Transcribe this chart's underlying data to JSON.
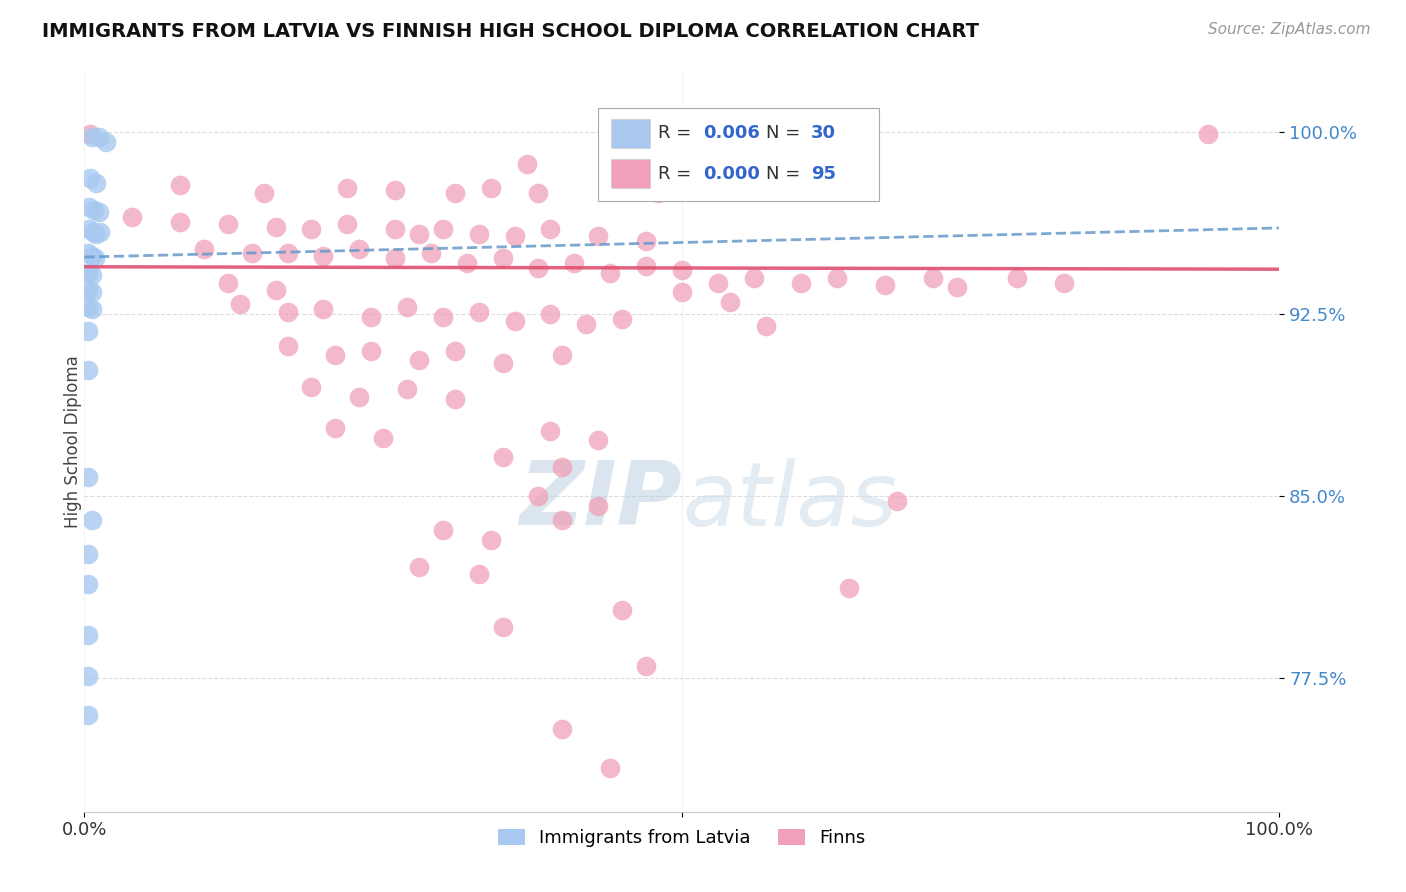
{
  "title": "IMMIGRANTS FROM LATVIA VS FINNISH HIGH SCHOOL DIPLOMA CORRELATION CHART",
  "source_text": "Source: ZipAtlas.com",
  "ylabel": "High School Diploma",
  "xlim": [
    0.0,
    1.0
  ],
  "ylim": [
    0.72,
    1.025
  ],
  "yticks": [
    0.775,
    0.85,
    0.925,
    1.0
  ],
  "ytick_labels": [
    "77.5%",
    "85.0%",
    "92.5%",
    "100.0%"
  ],
  "legend_r1": "0.006",
  "legend_n1": "30",
  "legend_r2": "0.000",
  "legend_n2": "95",
  "legend_label1": "Immigrants from Latvia",
  "legend_label2": "Finns",
  "color_blue": "#A8C8F0",
  "color_pink": "#F0A0B8",
  "trendline_blue": "#6699CC",
  "trendline_pink": "#E05070",
  "watermark_color": "#C8D8E8",
  "blue_trendline": [
    [
      0.0,
      0.9485
    ],
    [
      1.0,
      0.9605
    ]
  ],
  "pink_trendline": [
    [
      0.0,
      0.9445
    ],
    [
      1.0,
      0.9435
    ]
  ],
  "blue_scatter": [
    [
      0.006,
      0.998
    ],
    [
      0.012,
      0.998
    ],
    [
      0.018,
      0.996
    ],
    [
      0.005,
      0.981
    ],
    [
      0.01,
      0.979
    ],
    [
      0.004,
      0.969
    ],
    [
      0.008,
      0.968
    ],
    [
      0.012,
      0.967
    ],
    [
      0.004,
      0.96
    ],
    [
      0.007,
      0.959
    ],
    [
      0.01,
      0.958
    ],
    [
      0.013,
      0.959
    ],
    [
      0.003,
      0.95
    ],
    [
      0.006,
      0.949
    ],
    [
      0.009,
      0.948
    ],
    [
      0.003,
      0.942
    ],
    [
      0.006,
      0.941
    ],
    [
      0.003,
      0.935
    ],
    [
      0.006,
      0.934
    ],
    [
      0.003,
      0.928
    ],
    [
      0.006,
      0.927
    ],
    [
      0.003,
      0.918
    ],
    [
      0.003,
      0.902
    ],
    [
      0.003,
      0.858
    ],
    [
      0.006,
      0.84
    ],
    [
      0.003,
      0.826
    ],
    [
      0.003,
      0.814
    ],
    [
      0.003,
      0.793
    ],
    [
      0.003,
      0.776
    ],
    [
      0.003,
      0.76
    ]
  ],
  "pink_scatter": [
    [
      0.005,
      0.999
    ],
    [
      0.52,
      0.999
    ],
    [
      0.94,
      0.999
    ],
    [
      0.37,
      0.987
    ],
    [
      0.08,
      0.978
    ],
    [
      0.15,
      0.975
    ],
    [
      0.22,
      0.977
    ],
    [
      0.26,
      0.976
    ],
    [
      0.31,
      0.975
    ],
    [
      0.34,
      0.977
    ],
    [
      0.38,
      0.975
    ],
    [
      0.48,
      0.975
    ],
    [
      0.04,
      0.965
    ],
    [
      0.08,
      0.963
    ],
    [
      0.12,
      0.962
    ],
    [
      0.16,
      0.961
    ],
    [
      0.19,
      0.96
    ],
    [
      0.22,
      0.962
    ],
    [
      0.26,
      0.96
    ],
    [
      0.28,
      0.958
    ],
    [
      0.3,
      0.96
    ],
    [
      0.33,
      0.958
    ],
    [
      0.36,
      0.957
    ],
    [
      0.39,
      0.96
    ],
    [
      0.43,
      0.957
    ],
    [
      0.47,
      0.955
    ],
    [
      0.1,
      0.952
    ],
    [
      0.14,
      0.95
    ],
    [
      0.17,
      0.95
    ],
    [
      0.2,
      0.949
    ],
    [
      0.23,
      0.952
    ],
    [
      0.26,
      0.948
    ],
    [
      0.29,
      0.95
    ],
    [
      0.32,
      0.946
    ],
    [
      0.35,
      0.948
    ],
    [
      0.38,
      0.944
    ],
    [
      0.41,
      0.946
    ],
    [
      0.44,
      0.942
    ],
    [
      0.47,
      0.945
    ],
    [
      0.5,
      0.943
    ],
    [
      0.53,
      0.938
    ],
    [
      0.56,
      0.94
    ],
    [
      0.6,
      0.938
    ],
    [
      0.63,
      0.94
    ],
    [
      0.67,
      0.937
    ],
    [
      0.71,
      0.94
    ],
    [
      0.12,
      0.938
    ],
    [
      0.16,
      0.935
    ],
    [
      0.5,
      0.934
    ],
    [
      0.54,
      0.93
    ],
    [
      0.73,
      0.936
    ],
    [
      0.78,
      0.94
    ],
    [
      0.82,
      0.938
    ],
    [
      0.13,
      0.929
    ],
    [
      0.17,
      0.926
    ],
    [
      0.2,
      0.927
    ],
    [
      0.24,
      0.924
    ],
    [
      0.27,
      0.928
    ],
    [
      0.3,
      0.924
    ],
    [
      0.33,
      0.926
    ],
    [
      0.36,
      0.922
    ],
    [
      0.39,
      0.925
    ],
    [
      0.42,
      0.921
    ],
    [
      0.45,
      0.923
    ],
    [
      0.57,
      0.92
    ],
    [
      0.17,
      0.912
    ],
    [
      0.21,
      0.908
    ],
    [
      0.24,
      0.91
    ],
    [
      0.28,
      0.906
    ],
    [
      0.31,
      0.91
    ],
    [
      0.35,
      0.905
    ],
    [
      0.4,
      0.908
    ],
    [
      0.19,
      0.895
    ],
    [
      0.23,
      0.891
    ],
    [
      0.27,
      0.894
    ],
    [
      0.31,
      0.89
    ],
    [
      0.21,
      0.878
    ],
    [
      0.25,
      0.874
    ],
    [
      0.39,
      0.877
    ],
    [
      0.43,
      0.873
    ],
    [
      0.35,
      0.866
    ],
    [
      0.4,
      0.862
    ],
    [
      0.38,
      0.85
    ],
    [
      0.43,
      0.846
    ],
    [
      0.3,
      0.836
    ],
    [
      0.34,
      0.832
    ],
    [
      0.4,
      0.84
    ],
    [
      0.68,
      0.848
    ],
    [
      0.28,
      0.821
    ],
    [
      0.33,
      0.818
    ],
    [
      0.45,
      0.803
    ],
    [
      0.64,
      0.812
    ],
    [
      0.35,
      0.796
    ],
    [
      0.47,
      0.78
    ],
    [
      0.4,
      0.754
    ],
    [
      0.44,
      0.738
    ]
  ]
}
